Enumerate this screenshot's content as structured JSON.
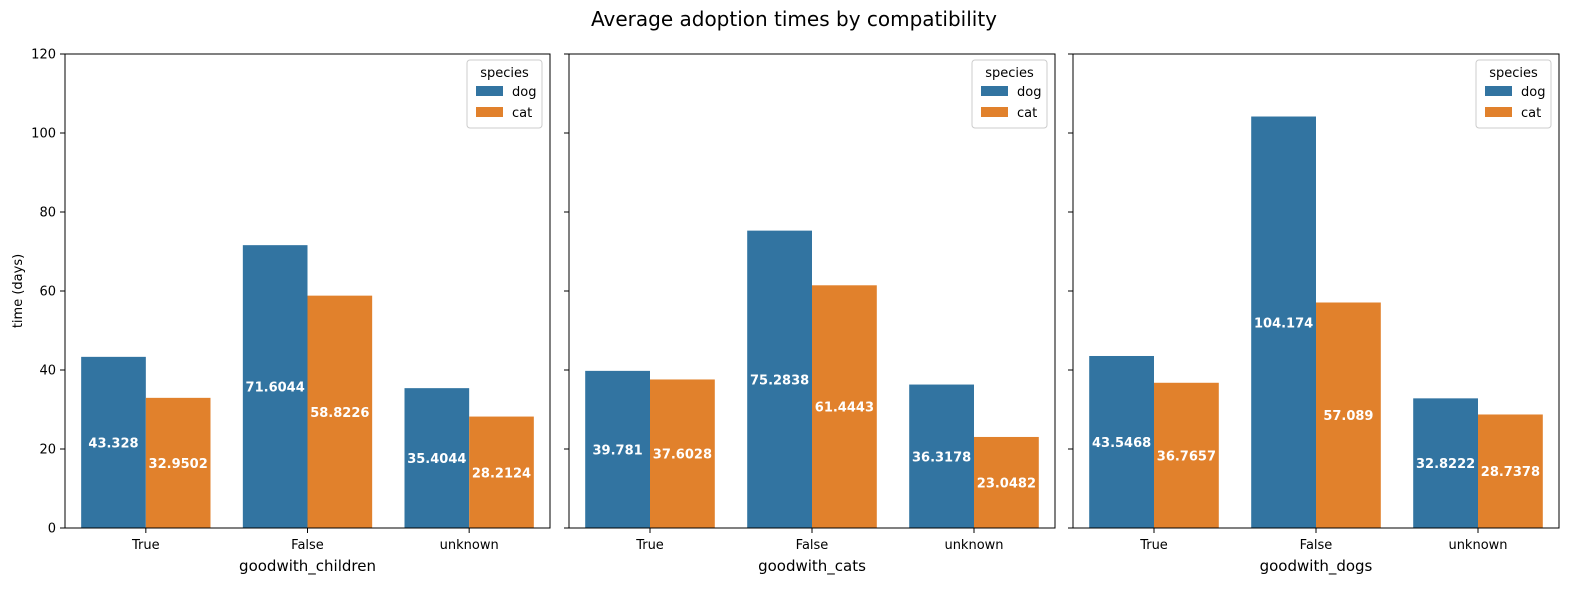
{
  "title": "Average adoption times by compatibility",
  "ylabel": "time (days)",
  "colors": {
    "dog": "#3274a1",
    "cat": "#e1812c"
  },
  "legend": {
    "title": "species",
    "entries": [
      "dog",
      "cat"
    ]
  },
  "chart_data": [
    {
      "type": "bar",
      "title": "",
      "xlabel": "goodwith_children",
      "ylabel": "time (days)",
      "categories": [
        "True",
        "False",
        "unknown"
      ],
      "ylim": [
        0,
        120
      ],
      "yticks": [
        0,
        20,
        40,
        60,
        80,
        100,
        120
      ],
      "series": [
        {
          "name": "dog",
          "values": [
            43.328,
            71.6044,
            35.4044
          ],
          "labels": [
            "43.328",
            "71.6044",
            "35.4044"
          ]
        },
        {
          "name": "cat",
          "values": [
            32.9502,
            58.8226,
            28.2124
          ],
          "labels": [
            "32.9502",
            "58.8226",
            "28.2124"
          ]
        }
      ],
      "legend": "top-right",
      "grid": false
    },
    {
      "type": "bar",
      "title": "",
      "xlabel": "goodwith_cats",
      "ylabel": "",
      "categories": [
        "True",
        "False",
        "unknown"
      ],
      "ylim": [
        0,
        120
      ],
      "yticks": [
        0,
        20,
        40,
        60,
        80,
        100,
        120
      ],
      "series": [
        {
          "name": "dog",
          "values": [
            39.781,
            75.2838,
            36.3178
          ],
          "labels": [
            "39.781",
            "75.2838",
            "36.3178"
          ]
        },
        {
          "name": "cat",
          "values": [
            37.6028,
            61.4443,
            23.0482
          ],
          "labels": [
            "37.6028",
            "61.4443",
            "23.0482"
          ]
        }
      ],
      "legend": "top-right",
      "grid": false
    },
    {
      "type": "bar",
      "title": "",
      "xlabel": "goodwith_dogs",
      "ylabel": "",
      "categories": [
        "True",
        "False",
        "unknown"
      ],
      "ylim": [
        0,
        120
      ],
      "yticks": [
        0,
        20,
        40,
        60,
        80,
        100,
        120
      ],
      "series": [
        {
          "name": "dog",
          "values": [
            43.5468,
            104.174,
            32.8222
          ],
          "labels": [
            "43.5468",
            "104.174",
            "32.8222"
          ]
        },
        {
          "name": "cat",
          "values": [
            36.7657,
            57.089,
            28.7378
          ],
          "labels": [
            "36.7657",
            "57.089",
            "28.7378"
          ]
        }
      ],
      "legend": "top-right",
      "grid": false
    }
  ]
}
